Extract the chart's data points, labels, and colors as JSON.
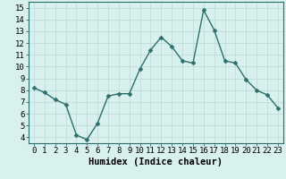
{
  "x": [
    0,
    1,
    2,
    3,
    4,
    5,
    6,
    7,
    8,
    9,
    10,
    11,
    12,
    13,
    14,
    15,
    16,
    17,
    18,
    19,
    20,
    21,
    22,
    23
  ],
  "y": [
    8.2,
    7.8,
    7.2,
    6.8,
    4.2,
    3.8,
    5.2,
    7.5,
    7.7,
    7.7,
    9.8,
    11.4,
    12.5,
    11.7,
    10.5,
    10.3,
    14.8,
    13.1,
    10.5,
    10.3,
    8.9,
    8.0,
    7.6,
    6.5
  ],
  "line_color": "#2d6e6e",
  "bg_color": "#d8f0ee",
  "grid_color": "#c0dcd8",
  "xlabel": "Humidex (Indice chaleur)",
  "ylim": [
    3.5,
    15.5
  ],
  "xlim": [
    -0.5,
    23.5
  ],
  "yticks": [
    4,
    5,
    6,
    7,
    8,
    9,
    10,
    11,
    12,
    13,
    14,
    15
  ],
  "xticks": [
    0,
    1,
    2,
    3,
    4,
    5,
    6,
    7,
    8,
    9,
    10,
    11,
    12,
    13,
    14,
    15,
    16,
    17,
    18,
    19,
    20,
    21,
    22,
    23
  ],
  "xlabel_fontsize": 7.5,
  "tick_fontsize": 6.5
}
